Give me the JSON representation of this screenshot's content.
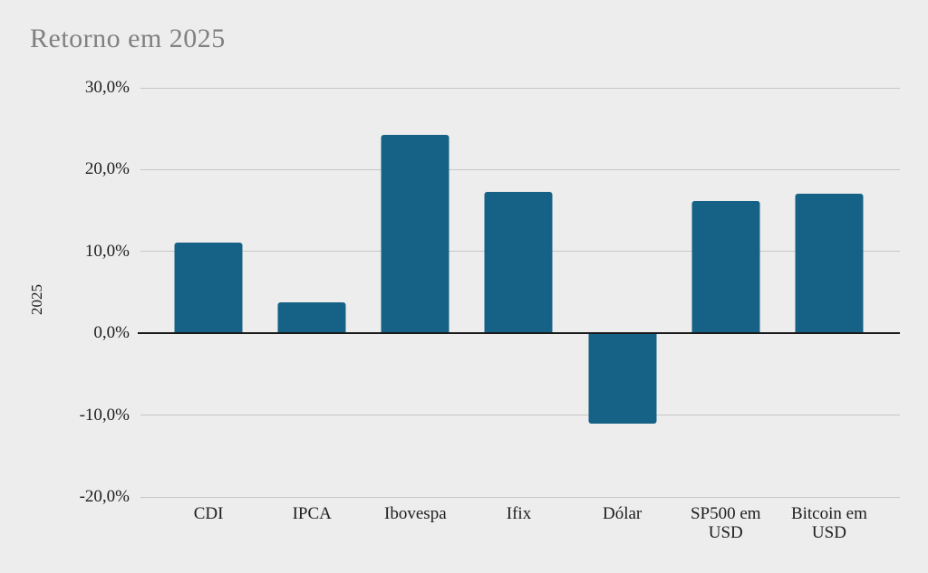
{
  "title": "Retorno em 2025",
  "colors": {
    "background": "#EDEDED",
    "bar": "#166286",
    "gridline": "#C6C6C6",
    "zero_axis": "#1A1A1A",
    "title_text": "#808080",
    "axis_text": "#1D1D1D"
  },
  "chart_data": {
    "type": "bar",
    "title": "Retorno em 2025",
    "series_name": "2025",
    "categories": [
      "CDI",
      "IPCA",
      "Ibovespa",
      "Ifix",
      "Dólar",
      "SP500 em\nUSD",
      "Bitcoin em\nUSD"
    ],
    "values": [
      11.1,
      3.8,
      24.3,
      17.3,
      -11.0,
      16.2,
      17.1
    ],
    "value_unit": "%",
    "xlabel": "",
    "ylabel": "2025",
    "ylim": [
      -20,
      30
    ],
    "yticks": [
      {
        "value": 30,
        "label": "30,0%"
      },
      {
        "value": 20,
        "label": "20,0%"
      },
      {
        "value": 10,
        "label": "10,0%"
      },
      {
        "value": 0,
        "label": "0,0%"
      },
      {
        "value": -10,
        "label": "-10,0%"
      },
      {
        "value": -20,
        "label": "-20,0%"
      }
    ],
    "grid": true,
    "legend_position": "none"
  }
}
